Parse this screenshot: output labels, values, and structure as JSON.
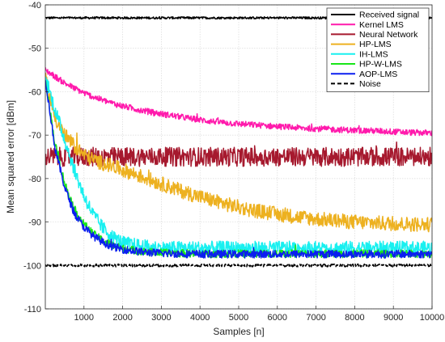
{
  "chart_data": {
    "type": "line",
    "title": "",
    "xlabel": "Samples [n]",
    "ylabel": "Mean squared error [dBm]",
    "xlim": [
      0,
      10000
    ],
    "ylim": [
      -110,
      -40
    ],
    "xticks": [
      1000,
      2000,
      3000,
      4000,
      5000,
      6000,
      7000,
      8000,
      9000,
      10000
    ],
    "yticks": [
      -110,
      -100,
      -90,
      -80,
      -70,
      -60,
      -50,
      -40
    ],
    "xtick_labels": [
      "1000",
      "2000",
      "3000",
      "4000",
      "5000",
      "6000",
      "7000",
      "8000",
      "9000",
      "10000"
    ],
    "ytick_labels": [
      "-110",
      "-100",
      "-90",
      "-80",
      "-70",
      "-60",
      "-50",
      "-40"
    ],
    "grid": true,
    "legend_position": "top-right",
    "x": [
      0,
      250,
      500,
      750,
      1000,
      1250,
      1500,
      1750,
      2000,
      2500,
      3000,
      3500,
      4000,
      4500,
      5000,
      5500,
      6000,
      6500,
      7000,
      7500,
      8000,
      8500,
      9000,
      9500,
      10000
    ],
    "series": [
      {
        "name": "Received signal",
        "color": "#000000",
        "dash": "solid",
        "values": [
          -43,
          -43,
          -43,
          -43,
          -43,
          -43,
          -43,
          -43,
          -43,
          -43,
          -43,
          -43,
          -43,
          -43,
          -43,
          -43,
          -43,
          -43,
          -43,
          -43,
          -43,
          -43,
          -43,
          -43,
          -43
        ]
      },
      {
        "name": "Kernel LMS",
        "color": "#ff1aac",
        "dash": "solid",
        "values": [
          -55,
          -56.5,
          -58,
          -59.2,
          -60.3,
          -61.2,
          -62,
          -62.7,
          -63.3,
          -64.3,
          -65.1,
          -65.8,
          -66.5,
          -67,
          -67.4,
          -67.7,
          -68,
          -68.3,
          -68.5,
          -68.7,
          -68.9,
          -69,
          -69.2,
          -69.4,
          -69.5
        ]
      },
      {
        "name": "Neural Network",
        "color": "#a6192e",
        "dash": "solid",
        "values": [
          -75,
          -75,
          -75,
          -75,
          -75,
          -75,
          -75,
          -75,
          -75,
          -75,
          -75,
          -75,
          -75,
          -75,
          -75,
          -75,
          -75,
          -75,
          -75,
          -75,
          -75,
          -75,
          -75,
          -75,
          -75
        ]
      },
      {
        "name": "HP-LMS",
        "color": "#edb120",
        "dash": "solid",
        "values": [
          -57,
          -66,
          -70,
          -72.5,
          -74.5,
          -75.7,
          -76.5,
          -77.2,
          -78,
          -79.6,
          -81.2,
          -82.8,
          -84.2,
          -85.5,
          -86.6,
          -87.5,
          -88.2,
          -88.8,
          -89.3,
          -89.7,
          -90,
          -90.2,
          -90.4,
          -90.5,
          -90.6
        ]
      },
      {
        "name": "IH-LMS",
        "color": "#19f0f0",
        "dash": "solid",
        "values": [
          -57,
          -64,
          -71,
          -78,
          -84,
          -88.5,
          -91.5,
          -93.5,
          -94.8,
          -95.6,
          -96,
          -96,
          -96,
          -96,
          -96,
          -96,
          -96,
          -96,
          -96,
          -96,
          -96,
          -96,
          -96,
          -96,
          -96
        ]
      },
      {
        "name": "HP-W-LMS",
        "color": "#19e619",
        "dash": "solid",
        "values": [
          -57,
          -72,
          -81,
          -87,
          -90.5,
          -92.8,
          -94.3,
          -95.4,
          -96.1,
          -96.8,
          -97.1,
          -97.2,
          -97.3,
          -97.3,
          -97.3,
          -97.3,
          -97.3,
          -97.3,
          -97.3,
          -97.3,
          -97.3,
          -97.3,
          -97.3,
          -97.3,
          -97.3
        ]
      },
      {
        "name": "AOP-LMS",
        "color": "#0b1ef0",
        "dash": "solid",
        "values": [
          -57,
          -73,
          -82,
          -88,
          -91.2,
          -93.3,
          -94.7,
          -95.7,
          -96.3,
          -96.9,
          -97.2,
          -97.3,
          -97.4,
          -97.4,
          -97.4,
          -97.4,
          -97.4,
          -97.4,
          -97.4,
          -97.4,
          -97.4,
          -97.4,
          -97.4,
          -97.4,
          -97.4
        ]
      },
      {
        "name": "Noise",
        "color": "#000000",
        "dash": "dashed",
        "values": [
          -100,
          -100,
          -100,
          -100,
          -100,
          -100,
          -100,
          -100,
          -100,
          -100,
          -100,
          -100,
          -100,
          -100,
          -100,
          -100,
          -100,
          -100,
          -100,
          -100,
          -100,
          -100,
          -100,
          -100,
          -100
        ]
      }
    ],
    "noise_amplitude": [
      0.25,
      0.7,
      2.2,
      1.7,
      1.6,
      0.9,
      0.9,
      0.3
    ]
  }
}
